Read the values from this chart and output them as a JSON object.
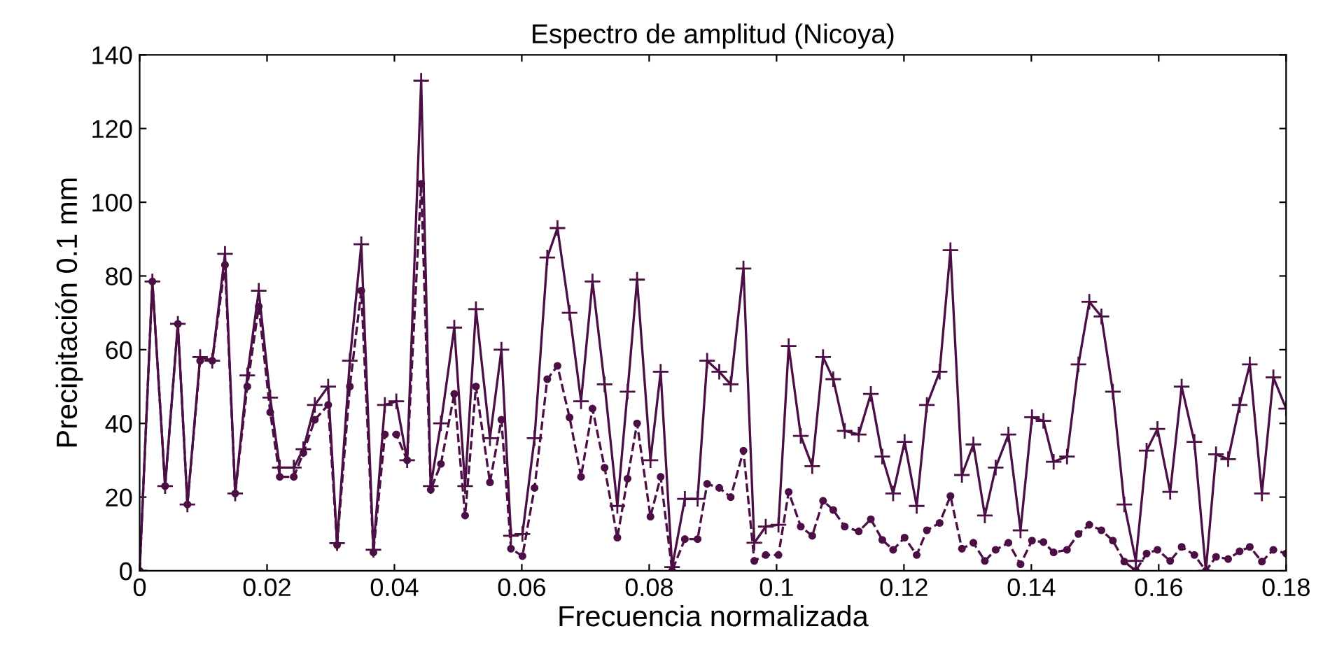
{
  "chart_data": {
    "type": "line",
    "title": "Espectro de amplitud (Nicoya)",
    "xlabel": "Frecuencia normalizada",
    "ylabel": "Precipitación 0.1 mm",
    "x": [
      0,
      0.002,
      0.004,
      0.006,
      0.0075,
      0.0095,
      0.0114,
      0.0134,
      0.015,
      0.0169,
      0.0187,
      0.0205,
      0.022,
      0.0242,
      0.0257,
      0.0275,
      0.0296,
      0.031,
      0.033,
      0.0348,
      0.0367,
      0.0385,
      0.0403,
      0.042,
      0.0442,
      0.0457,
      0.0473,
      0.0494,
      0.0511,
      0.0528,
      0.055,
      0.0568,
      0.0583,
      0.0601,
      0.062,
      0.064,
      0.0656,
      0.0675,
      0.0693,
      0.0711,
      0.073,
      0.075,
      0.0766,
      0.0781,
      0.0802,
      0.0818,
      0.0836,
      0.0856,
      0.0876,
      0.0891,
      0.091,
      0.0928,
      0.0948,
      0.0965,
      0.0983,
      0.1003,
      0.1019,
      0.1038,
      0.1056,
      0.1073,
      0.1089,
      0.1107,
      0.1129,
      0.1148,
      0.1166,
      0.1183,
      0.1201,
      0.122,
      0.1236,
      0.1256,
      0.1273,
      0.1291,
      0.1309,
      0.1327,
      0.1344,
      0.1364,
      0.1383,
      0.1401,
      0.1419,
      0.1435,
      0.1456,
      0.1474,
      0.1491,
      0.151,
      0.1528,
      0.1546,
      0.1564,
      0.1581,
      0.1598,
      0.1618,
      0.1636,
      0.1656,
      0.1674,
      0.169,
      0.1709,
      0.1727,
      0.1743,
      0.1762,
      0.178,
      0.18
    ],
    "series": [
      {
        "color": "#4b0f45",
        "marker": "cross",
        "line_style": "solid",
        "values": [
          0,
          78.5,
          23,
          67,
          18,
          58,
          57,
          86,
          21,
          53,
          76,
          47,
          28,
          28,
          33,
          45,
          50,
          7.5,
          57,
          88.6,
          5.7,
          45,
          46,
          30,
          133,
          23,
          40,
          66,
          23,
          71,
          36,
          60,
          9.5,
          10,
          36,
          85,
          93,
          70,
          46,
          78.5,
          50.6,
          17.6,
          48.6,
          79,
          30,
          54,
          1,
          19.5,
          19.5,
          57,
          54,
          50.6,
          82,
          7.6,
          12,
          12.5,
          61,
          36.6,
          28.4,
          58,
          52,
          38,
          37,
          48,
          31,
          21,
          35,
          17.6,
          45,
          54,
          87,
          26,
          34.3,
          15,
          28,
          37,
          11,
          41.7,
          40.7,
          29.6,
          31,
          56,
          73,
          69,
          48.6,
          18,
          2.7,
          32.6,
          38.5,
          21.4,
          50,
          35,
          0,
          31.6,
          30.3,
          45,
          56,
          21,
          52.5,
          44
        ]
      },
      {
        "color": "#4b0f45",
        "marker": "circle",
        "line_style": "dashed",
        "values": [
          0,
          78.5,
          23,
          67,
          18,
          57,
          57,
          83,
          21,
          50,
          71.7,
          43,
          25.5,
          25.5,
          32,
          41,
          45,
          7,
          50,
          76,
          5,
          37,
          37,
          30,
          105,
          22,
          29,
          48,
          15,
          50,
          24,
          41,
          6,
          4,
          22.5,
          52,
          55.6,
          41.6,
          25.5,
          44,
          28,
          9,
          25,
          40,
          14.7,
          25.5,
          0,
          8.6,
          8.6,
          23.6,
          22.5,
          20,
          32.6,
          2.7,
          4.3,
          4.3,
          21.4,
          12,
          9.5,
          19,
          16.5,
          12,
          10.7,
          14,
          8.4,
          5.7,
          9,
          4.3,
          11,
          13,
          20.3,
          6,
          7.6,
          2.7,
          5.7,
          7.6,
          1.8,
          8.2,
          7.8,
          5,
          5.7,
          10,
          12.5,
          11,
          8.2,
          2.5,
          0,
          4.7,
          5.7,
          2.7,
          6.5,
          4.3,
          0,
          3.8,
          3.2,
          5.3,
          6.5,
          2.5,
          5.7,
          4.7
        ]
      }
    ],
    "xlim": [
      0,
      0.18
    ],
    "xticks": [
      0,
      0.02,
      0.04,
      0.06,
      0.08,
      0.1,
      0.12,
      0.14,
      0.16,
      0.18
    ],
    "ylim": [
      0,
      140
    ],
    "yticks": [
      0,
      20,
      40,
      60,
      80,
      100,
      120,
      140
    ],
    "grid": false,
    "legend": false
  }
}
